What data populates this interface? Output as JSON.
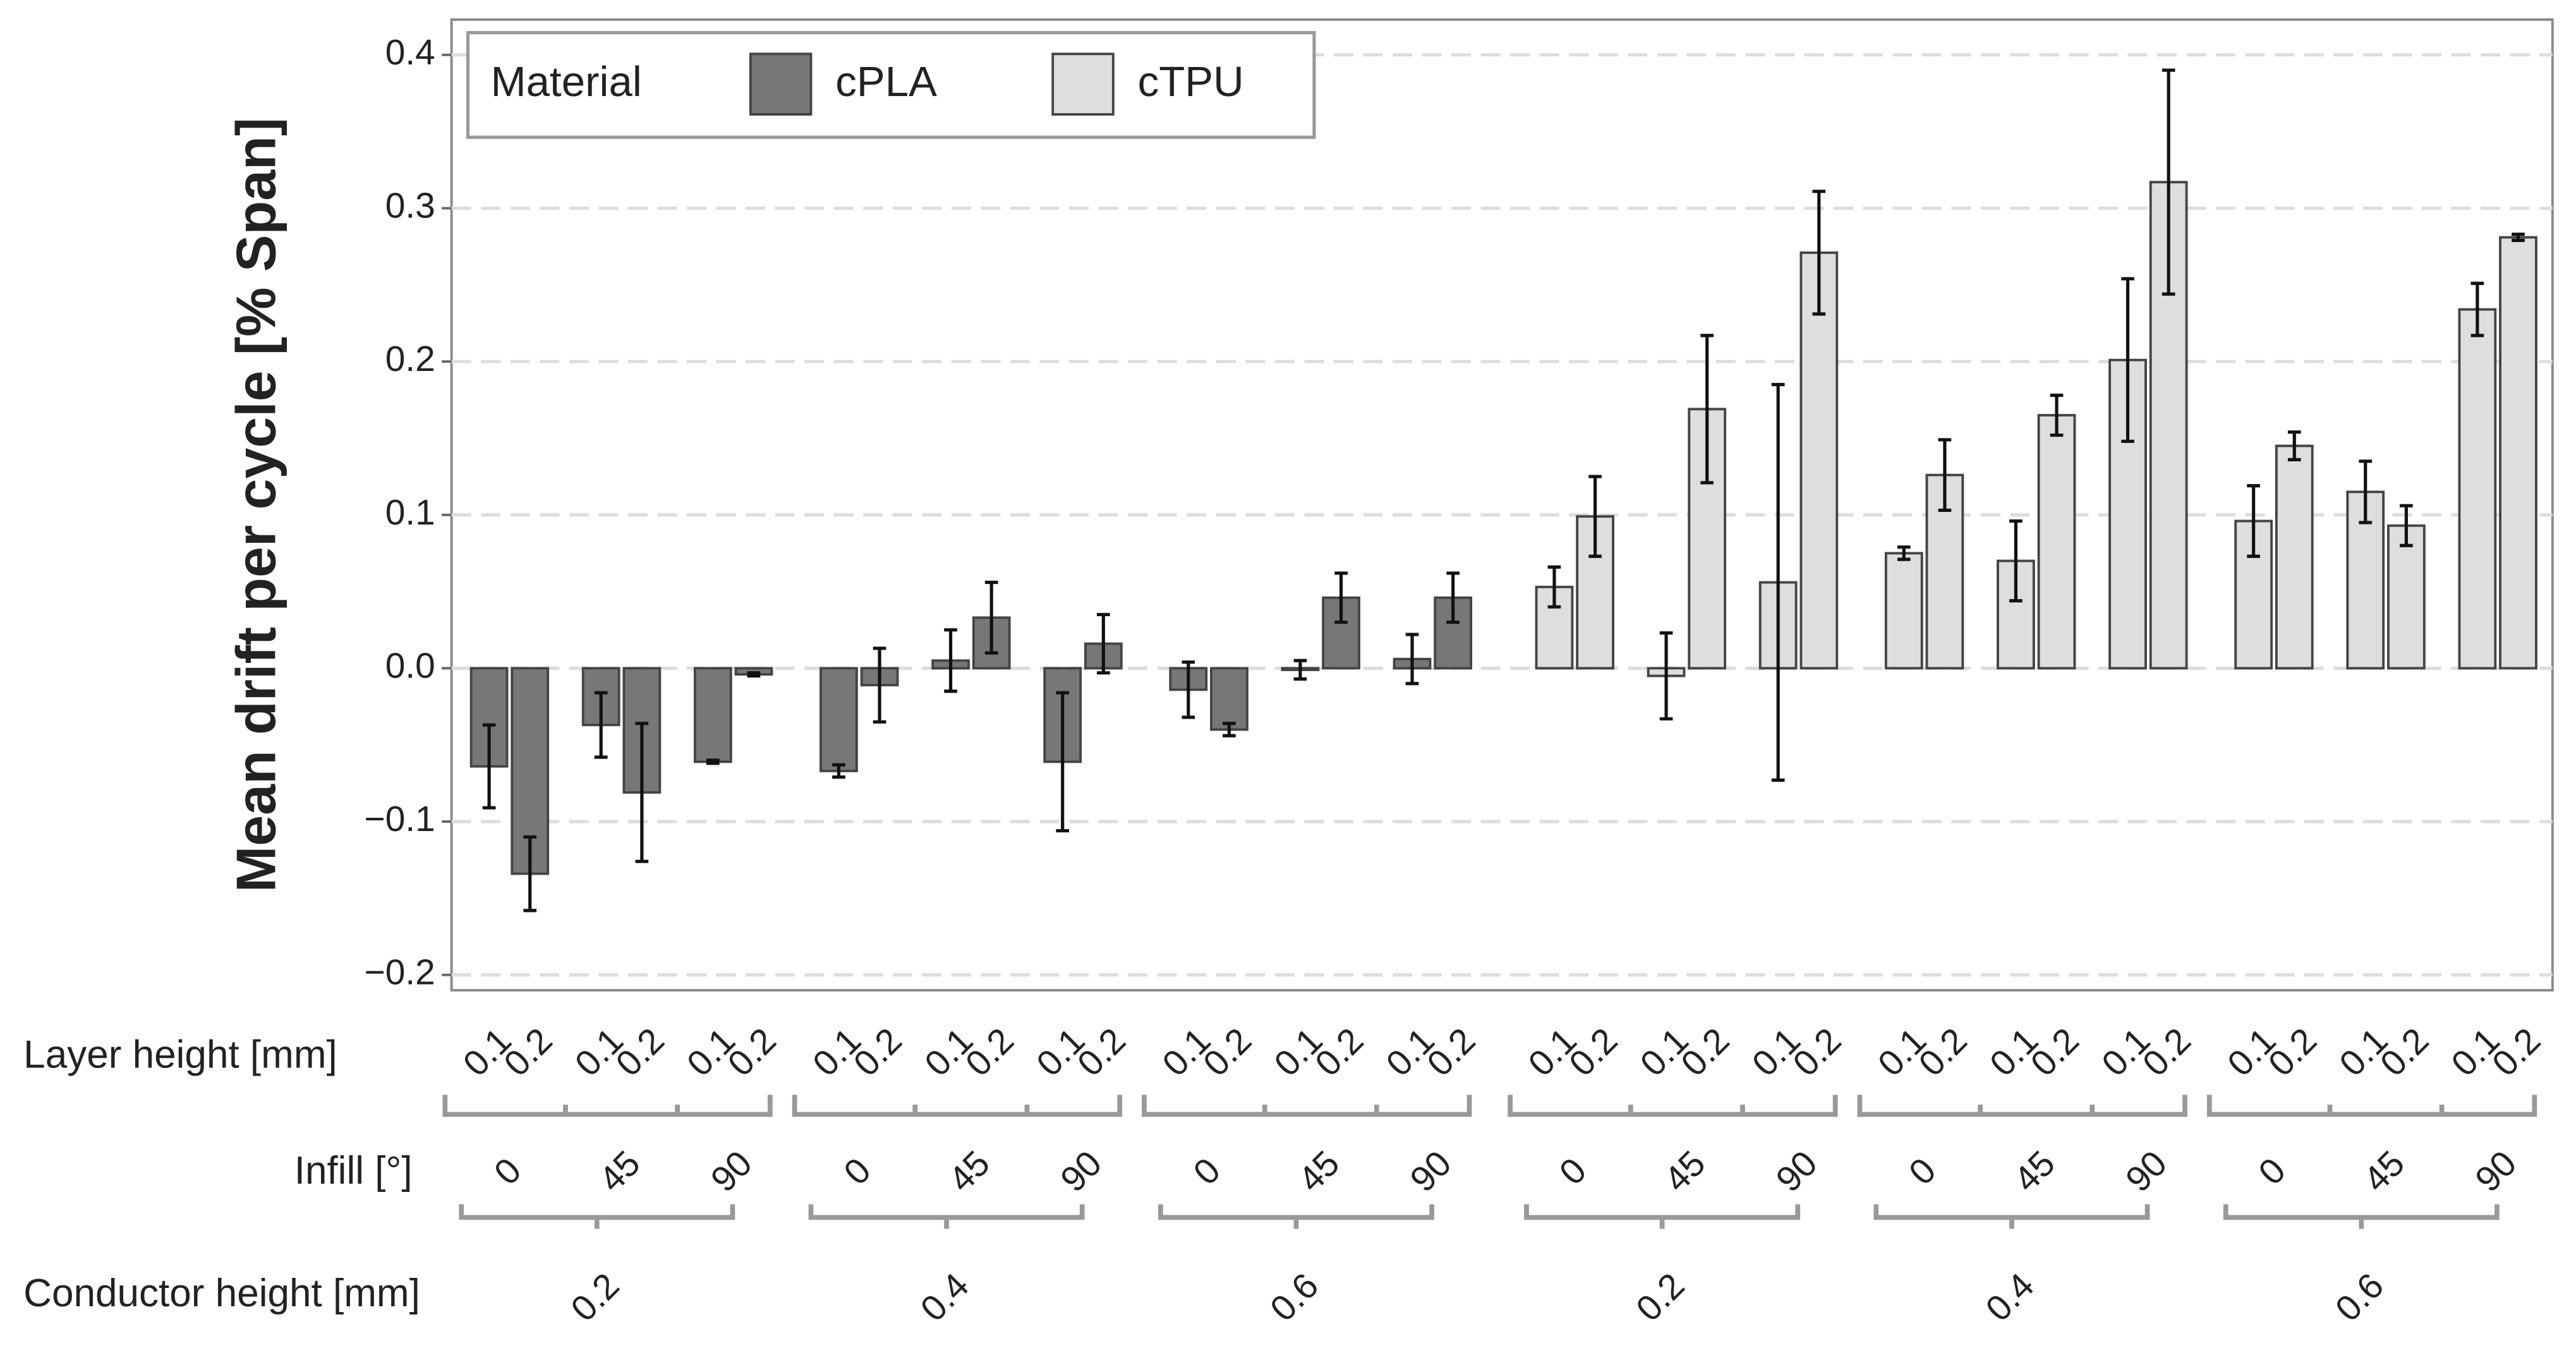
{
  "chart_data": {
    "type": "bar",
    "ylabel": "Mean drift per cycle [% Span]",
    "ylim": [
      -0.21,
      0.423
    ],
    "yticks": [
      {
        "value": -0.2,
        "label": "−0.2"
      },
      {
        "value": -0.1,
        "label": "−0.1"
      },
      {
        "value": 0,
        "label": "0.0"
      },
      0.1,
      0.2,
      0.3,
      0.4
    ],
    "grid": true,
    "legend": {
      "title": "Material",
      "position": "top-left"
    },
    "levels": {
      "layer_height": {
        "label": "Layer height [mm]",
        "labels": [
          "0.1",
          "0.2",
          "0.1",
          "0.2",
          "0.1",
          "0.2",
          "0.1",
          "0.2",
          "0.1",
          "0.2",
          "0.1",
          "0.2",
          "0.1",
          "0.2",
          "0.1",
          "0.2",
          "0.1",
          "0.2",
          "0.1",
          "0.2",
          "0.1",
          "0.2",
          "0.1",
          "0.2",
          "0.1",
          "0.2",
          "0.1",
          "0.2",
          "0.1",
          "0.2",
          "0.1",
          "0.2",
          "0.1",
          "0.2",
          "0.1",
          "0.2"
        ]
      },
      "infill": {
        "label": "Infill [°]",
        "labels": [
          "0",
          "45",
          "90",
          "0",
          "45",
          "90",
          "0",
          "45",
          "90",
          "0",
          "45",
          "90",
          "0",
          "45",
          "90",
          "0",
          "45",
          "90"
        ]
      },
      "conductor": {
        "label": "Conductor height [mm]",
        "labels": [
          "0.2",
          "0.4",
          "0.6",
          "0.2",
          "0.4",
          "0.6"
        ]
      }
    },
    "series": [
      {
        "name": "cPLA",
        "color": "#777777",
        "values": [
          -0.064,
          -0.134,
          -0.037,
          -0.081,
          -0.061,
          -0.004,
          -0.067,
          -0.011,
          0.005,
          0.033,
          -0.061,
          0.016,
          -0.014,
          -0.04,
          -0.001,
          0.046,
          0.006,
          0.046,
          null,
          null,
          null,
          null,
          null,
          null,
          null,
          null,
          null,
          null,
          null,
          null,
          null,
          null,
          null,
          null,
          null,
          null
        ],
        "errors": [
          0.027,
          0.024,
          0.021,
          0.045,
          0.001,
          0.001,
          0.004,
          0.024,
          0.02,
          0.023,
          0.045,
          0.019,
          0.018,
          0.004,
          0.006,
          0.016,
          0.016,
          0.016,
          null,
          null,
          null,
          null,
          null,
          null,
          null,
          null,
          null,
          null,
          null,
          null,
          null,
          null,
          null,
          null,
          null,
          null
        ]
      },
      {
        "name": "cTPU",
        "color": "#dedede",
        "values": [
          null,
          null,
          null,
          null,
          null,
          null,
          null,
          null,
          null,
          null,
          null,
          null,
          null,
          null,
          null,
          null,
          null,
          null,
          0.053,
          0.099,
          -0.005,
          0.169,
          0.056,
          0.271,
          0.075,
          0.126,
          0.07,
          0.165,
          0.201,
          0.317,
          0.096,
          0.145,
          0.115,
          0.093,
          0.234,
          0.281
        ],
        "errors": [
          null,
          null,
          null,
          null,
          null,
          null,
          null,
          null,
          null,
          null,
          null,
          null,
          null,
          null,
          null,
          null,
          null,
          null,
          0.013,
          0.026,
          0.028,
          0.048,
          0.129,
          0.04,
          0.004,
          0.023,
          0.026,
          0.013,
          0.053,
          0.073,
          0.023,
          0.009,
          0.02,
          0.013,
          0.017,
          0.002
        ]
      }
    ]
  }
}
